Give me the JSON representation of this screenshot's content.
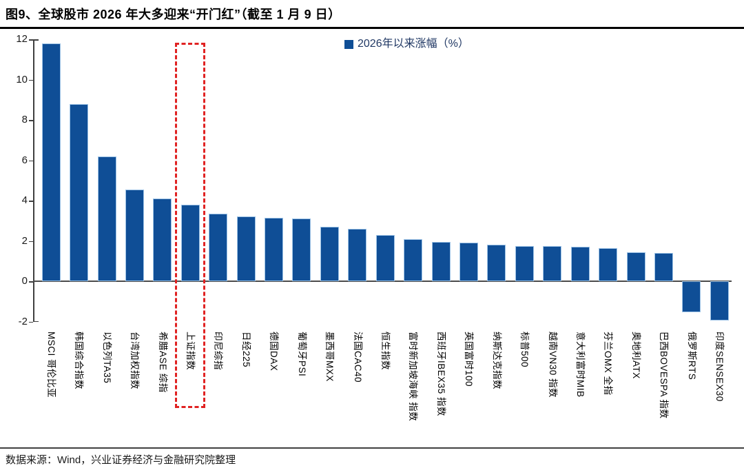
{
  "page": {
    "title": "图9、全球股市 2026 年大多迎来“开门红”（截至 1 月 9 日）",
    "source": "数据来源：Wind，兴业证券经济与金融研究院整理"
  },
  "colors": {
    "bar": "#0f4e96",
    "bar_edge": "#9dc3e6",
    "highlight_box": "#e02222",
    "axis": "#3f3f3f",
    "legend_text": "#203864"
  },
  "chart_data": {
    "type": "bar",
    "title": "图9、全球股市 2026 年大多迎来“开门红”（截至 1 月 9 日）",
    "legend_label": "2026年以来涨幅（%）",
    "legend_position": "top-center",
    "grid": false,
    "ylim": [
      -2,
      12
    ],
    "yticks": [
      12,
      10,
      8,
      6,
      4,
      2,
      0,
      -2
    ],
    "highlighted_category": "上证指数",
    "categories": [
      "MSCI 哥伦比亚",
      "韩国综合指数",
      "以色列TA35",
      "台湾加权指数",
      "希腊ASE 综指",
      "上证指数",
      "印尼综指",
      "日经225",
      "德国DAX",
      "葡萄牙PSI",
      "墨西哥MXX",
      "法国CAC40",
      "恒生指数",
      "富时新加坡海峡 指数",
      "西班牙IBEX35 指数",
      "英国富时100",
      "纳斯达克指数",
      "标普500",
      "越南VN30 指数",
      "意大利富时MIB",
      "芬兰OMX 全指",
      "奥地利ATX",
      "巴西BOVESPA 指数",
      "俄罗斯RTS",
      "印度SENSEX30"
    ],
    "values": [
      11.8,
      8.8,
      6.2,
      4.55,
      4.1,
      3.8,
      3.35,
      3.2,
      3.15,
      3.1,
      2.7,
      2.6,
      2.3,
      2.1,
      1.95,
      1.9,
      1.8,
      1.75,
      1.75,
      1.7,
      1.65,
      1.45,
      1.4,
      -1.55,
      -1.95
    ]
  }
}
